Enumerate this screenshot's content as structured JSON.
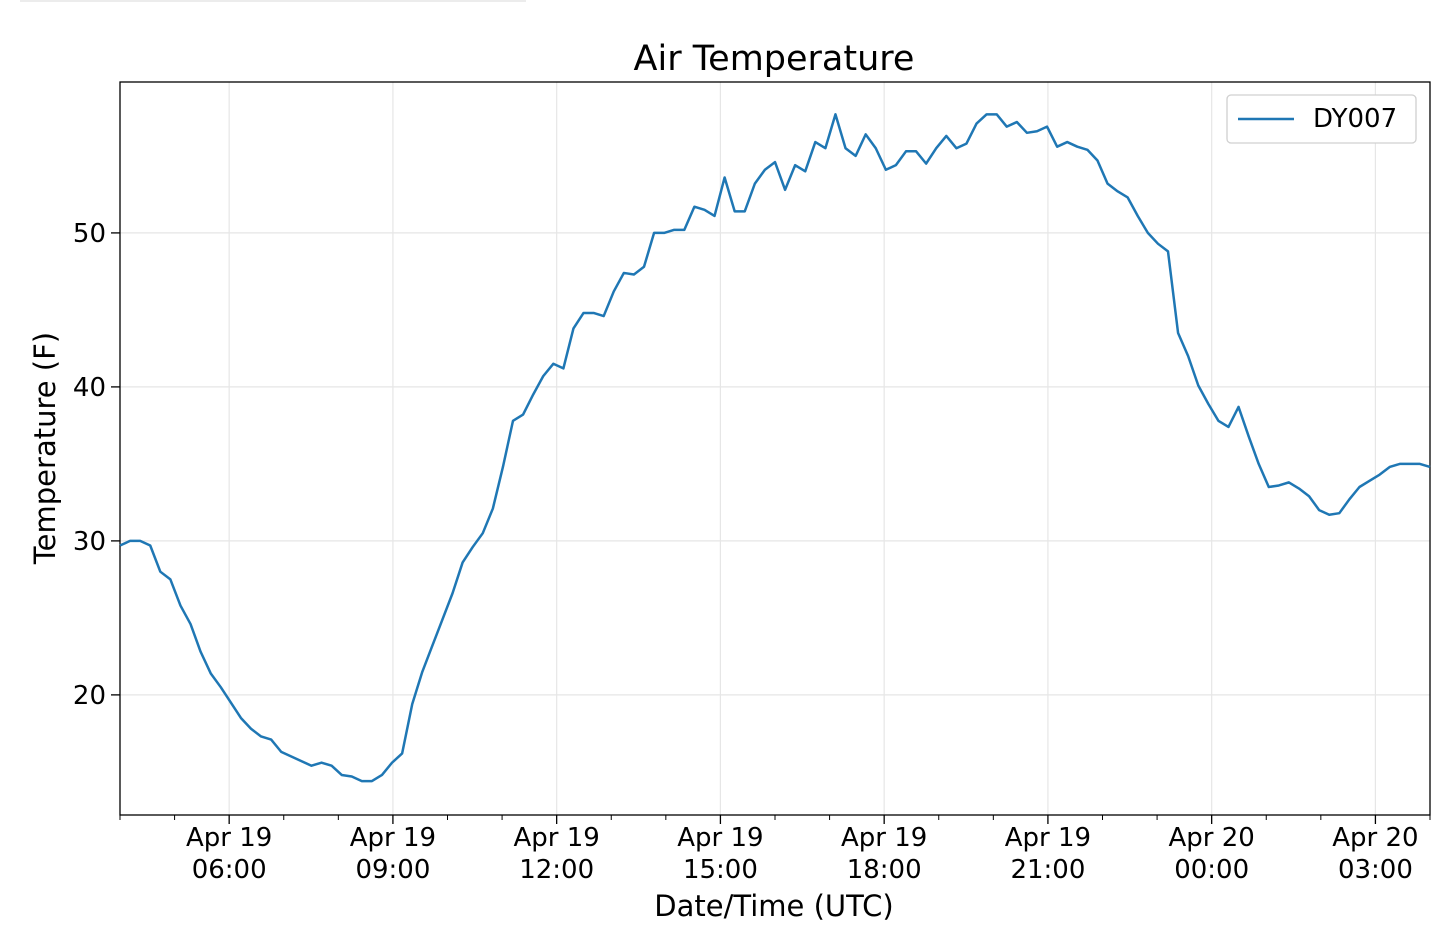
{
  "chart_data": {
    "type": "line",
    "title": "Air Temperature",
    "xlabel": "Date/Time (UTC)",
    "ylabel": "Temperature (F)",
    "grid": true,
    "legend_position": "top-right",
    "x_start": "2019-04-19T04:00",
    "x_end": "2019-04-20T04:00",
    "xlim_hours": [
      0,
      24
    ],
    "ylim": [
      12.2,
      59.8
    ],
    "yticks": [
      "20",
      "30",
      "40",
      "50"
    ],
    "xticks": [
      {
        "line1": "Apr 19",
        "line2": "06:00"
      },
      {
        "line1": "Apr 19",
        "line2": "09:00"
      },
      {
        "line1": "Apr 19",
        "line2": "12:00"
      },
      {
        "line1": "Apr 19",
        "line2": "15:00"
      },
      {
        "line1": "Apr 19",
        "line2": "18:00"
      },
      {
        "line1": "Apr 19",
        "line2": "21:00"
      },
      {
        "line1": "Apr 20",
        "line2": "00:00"
      },
      {
        "line1": "Apr 20",
        "line2": "03:00"
      }
    ],
    "series": [
      {
        "name": "DY007",
        "color": "#1f77b4",
        "values": [
          29.7,
          30.0,
          30.0,
          29.7,
          28.0,
          27.5,
          25.8,
          24.6,
          22.8,
          21.4,
          20.5,
          19.5,
          18.5,
          17.8,
          17.3,
          17.1,
          16.3,
          16.0,
          15.7,
          15.4,
          15.6,
          15.4,
          14.8,
          14.7,
          14.4,
          14.4,
          14.8,
          15.6,
          16.2,
          19.4,
          21.5,
          23.2,
          24.9,
          26.6,
          28.6,
          29.6,
          30.5,
          32.1,
          34.8,
          37.8,
          38.2,
          39.5,
          40.7,
          41.5,
          41.2,
          43.8,
          44.8,
          44.8,
          44.6,
          46.2,
          47.4,
          47.3,
          47.8,
          50.0,
          50.0,
          50.2,
          50.2,
          51.7,
          51.5,
          51.1,
          53.6,
          51.4,
          51.4,
          53.2,
          54.1,
          54.6,
          52.8,
          54.4,
          54.0,
          55.9,
          55.5,
          57.7,
          55.5,
          55.0,
          56.4,
          55.5,
          54.1,
          54.4,
          55.3,
          55.3,
          54.5,
          55.5,
          56.3,
          55.5,
          55.8,
          57.1,
          57.7,
          57.7,
          56.9,
          57.2,
          56.5,
          56.6,
          56.9,
          55.6,
          55.9,
          55.6,
          55.4,
          54.7,
          53.2,
          52.7,
          52.3,
          51.1,
          50.0,
          49.3,
          48.8,
          43.5,
          42.0,
          40.1,
          38.9,
          37.8,
          37.4,
          38.7,
          36.8,
          35.0,
          33.5,
          33.6,
          33.8,
          33.4,
          32.9,
          32.0,
          31.7,
          31.8,
          32.7,
          33.5,
          33.9,
          34.3,
          34.8,
          35.0,
          35.0,
          35.0,
          34.8
        ]
      }
    ]
  }
}
